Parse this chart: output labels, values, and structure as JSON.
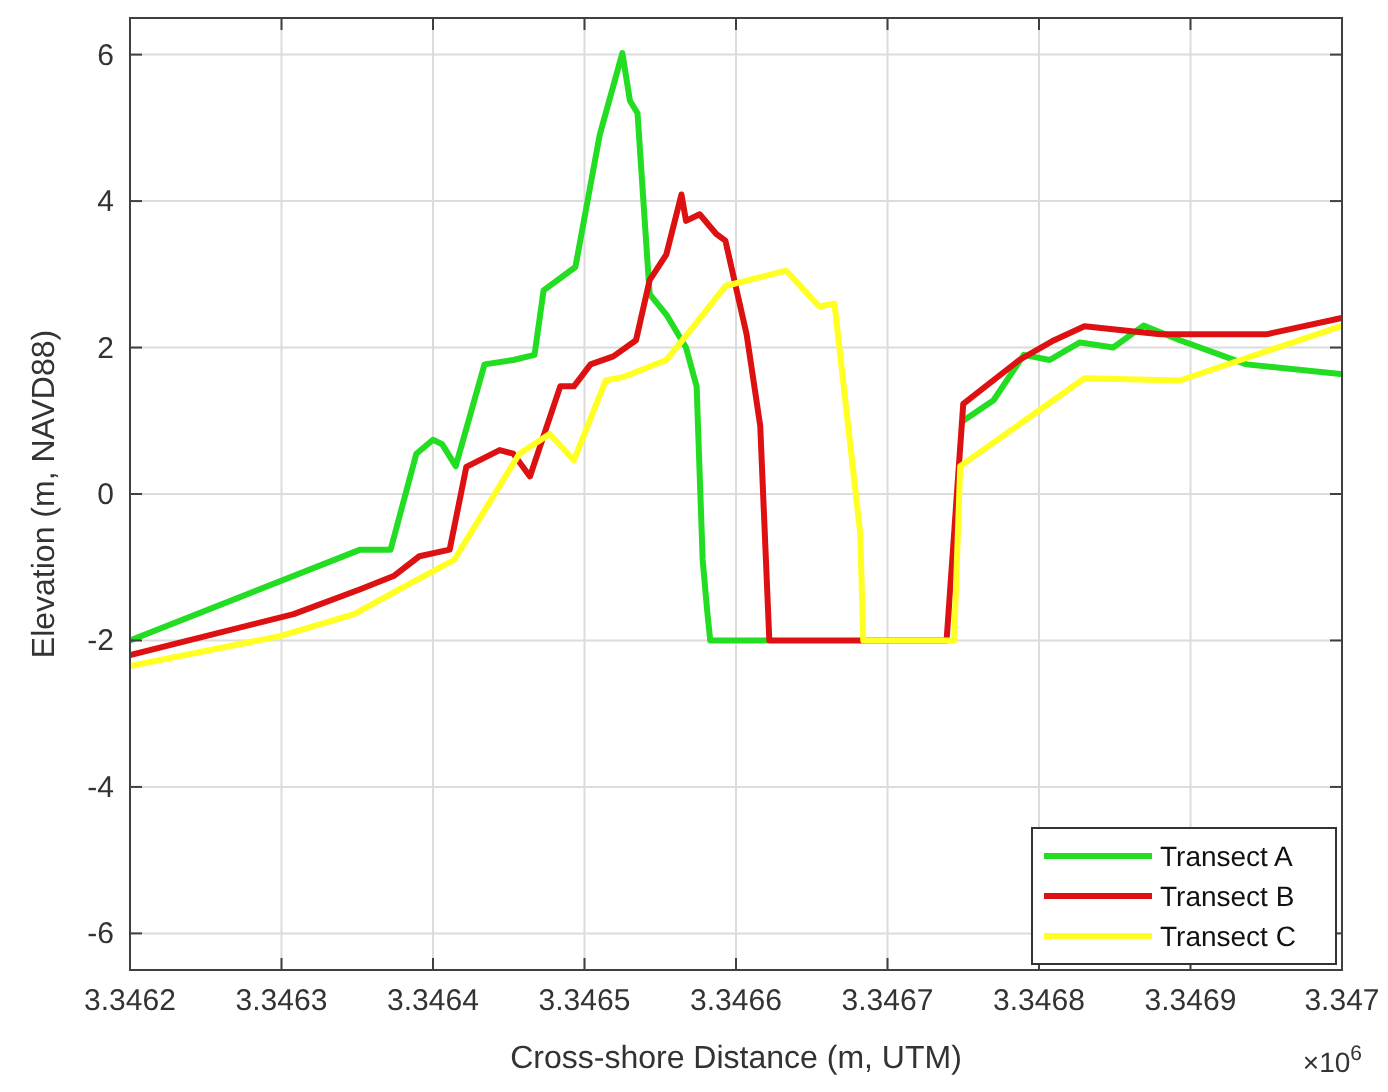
{
  "chart_data": {
    "type": "line",
    "xlabel": "Cross-shore Distance (m, UTM)",
    "ylabel": "Elevation (m, NAVD88)",
    "annotations": [
      "×10$^{6}$"
    ],
    "xlim": [
      3.3462,
      3.347
    ],
    "xticks": [
      3.3462,
      3.3463,
      3.3464,
      3.3465,
      3.3466,
      3.3467,
      3.3468,
      3.3469,
      3.347
    ],
    "ylim": [
      -6.5,
      6.5
    ],
    "yticks": [
      -6,
      -4,
      -2,
      0,
      2,
      4,
      6
    ],
    "grid": true,
    "legend": "bottom right",
    "line_style": "solid",
    "series": [
      {
        "name": "Transect A",
        "color": "#22dd22",
        "x": [
          3.3462,
          3.346352,
          3.346372,
          3.346389,
          3.3464,
          3.346406,
          3.346415,
          3.346434,
          3.346453,
          3.346467,
          3.346473,
          3.346494,
          3.34651,
          3.346525,
          3.34653,
          3.346535,
          3.346543,
          3.346554,
          3.346567,
          3.346574,
          3.346578,
          3.346581,
          3.346583,
          3.34662,
          3.346739,
          3.34675,
          3.34677,
          3.34679,
          3.346807,
          3.346827,
          3.346849,
          3.346869,
          3.346893,
          3.346937,
          3.346999
        ],
        "values": [
          -2.0,
          -0.76,
          -0.76,
          0.55,
          0.74,
          0.68,
          0.38,
          1.77,
          1.83,
          1.9,
          2.78,
          3.1,
          4.9,
          6.02,
          5.37,
          5.2,
          2.73,
          2.45,
          2.0,
          1.47,
          -0.9,
          -1.6,
          -2.0,
          -2.0,
          null,
          1.0,
          1.28,
          1.9,
          1.83,
          2.07,
          2.0,
          2.3,
          2.1,
          1.77,
          1.64
        ]
      },
      {
        "name": "Transect B",
        "color": "#dd1111",
        "x": [
          3.3462,
          3.346308,
          3.346352,
          3.346374,
          3.346391,
          3.346411,
          3.346422,
          3.346444,
          3.346453,
          3.346464,
          3.346484,
          3.346493,
          3.346504,
          3.346519,
          3.346534,
          3.346543,
          3.346554,
          3.346564,
          3.346567,
          3.346576,
          3.346587,
          3.346593,
          3.346607,
          3.346616,
          3.346622,
          3.346739,
          3.34675,
          3.346787,
          3.34681,
          3.34683,
          3.34688,
          3.34695,
          3.346999
        ],
        "values": [
          -2.2,
          -1.64,
          -1.3,
          -1.12,
          -0.85,
          -0.76,
          0.37,
          0.6,
          0.55,
          0.24,
          1.47,
          1.47,
          1.77,
          1.88,
          2.1,
          2.92,
          3.27,
          4.09,
          3.73,
          3.82,
          3.55,
          3.46,
          2.18,
          0.93,
          -2.0,
          -2.0,
          1.23,
          1.83,
          2.1,
          2.29,
          2.18,
          2.18,
          2.4
        ]
      },
      {
        "name": "Transect C",
        "color": "#ffff22",
        "x": [
          3.3462,
          3.346299,
          3.346348,
          3.346378,
          3.346414,
          3.346457,
          3.346477,
          3.346493,
          3.346514,
          3.346526,
          3.346554,
          3.346572,
          3.346593,
          3.346633,
          3.346655,
          3.346665,
          3.346682,
          3.346684,
          3.346744,
          3.346748,
          3.34683,
          3.346893,
          3.346999
        ],
        "values": [
          -2.35,
          -1.94,
          -1.64,
          -1.3,
          -0.9,
          0.55,
          0.82,
          0.46,
          1.55,
          1.6,
          1.83,
          2.29,
          2.84,
          3.05,
          2.56,
          2.6,
          -0.54,
          -2.0,
          -2.0,
          0.38,
          1.58,
          1.55,
          2.29
        ]
      }
    ]
  }
}
